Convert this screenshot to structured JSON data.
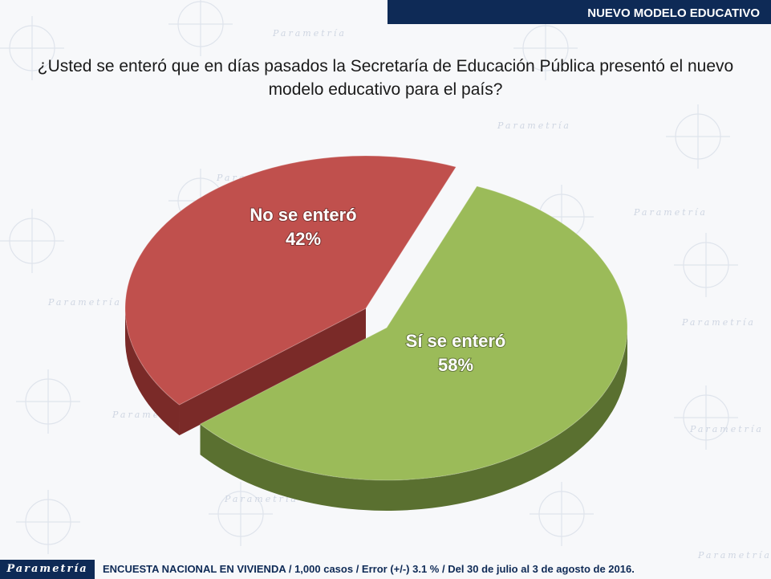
{
  "header": {
    "title": "NUEVO MODELO EDUCATIVO"
  },
  "question": "¿Usted se enteró que en días pasados la Secretaría de Educación Pública presentó el nuevo modelo educativo para el país?",
  "footer": {
    "logo": "Parametría",
    "note": "ENCUESTA NACIONAL EN VIVIENDA / 1,000 casos / Error (+/-) 3.1 % / Del 30 de julio al 3 de agosto de 2016."
  },
  "watermark": "Parametría",
  "colors": {
    "header_bg": "#0e2a56",
    "slice_no": "#c0504d",
    "slice_no_side": "#7a2a28",
    "slice_si": "#9bbb59",
    "slice_si_side": "#5a7030"
  },
  "chart_data": {
    "type": "pie",
    "title": "",
    "slices": [
      {
        "label": "No se enteró",
        "value": 42,
        "display": "42%"
      },
      {
        "label": "Sí se enteró",
        "value": 58,
        "display": "58%"
      }
    ]
  }
}
